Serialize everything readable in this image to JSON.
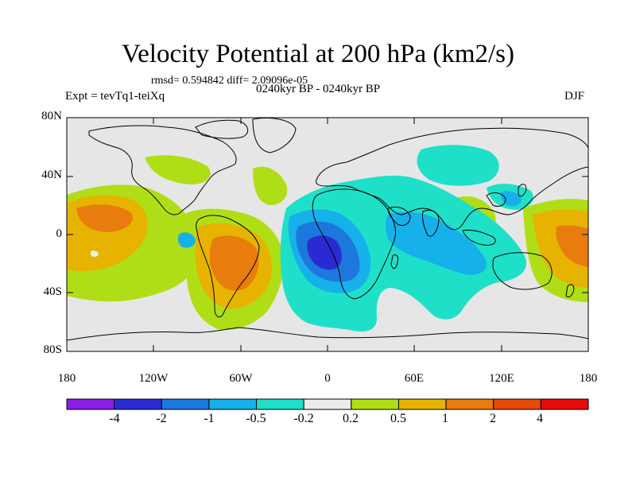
{
  "title": "Velocity Potential at 200 hPa (km2/s)",
  "stats": "rmsd= 0.594842  diff= 2.09096e-05",
  "left_label": "Expt = tevTq1-teiXq",
  "center_label": "0240kyr BP - 0240kyr BP",
  "right_label": "DJF",
  "lat_labels": [
    "80N",
    "40N",
    "0",
    "40S",
    "80S"
  ],
  "lon_labels": [
    "180",
    "120W",
    "60W",
    "0",
    "60E",
    "120E",
    "180"
  ],
  "colorbar": {
    "labels": [
      "-4",
      "-2",
      "-1",
      "-0.5",
      "-0.2",
      "0.2",
      "0.5",
      "1",
      "2",
      "4"
    ],
    "colors": [
      "#8a1ee8",
      "#2a2ad2",
      "#1c78dc",
      "#16b0ea",
      "#1ee0c8",
      "#ececec",
      "#b0de16",
      "#e6b400",
      "#e87c0c",
      "#e84a06",
      "#e80a0a"
    ]
  },
  "colors": {
    "background": "#e6e6e6",
    "coast": "#000000"
  }
}
